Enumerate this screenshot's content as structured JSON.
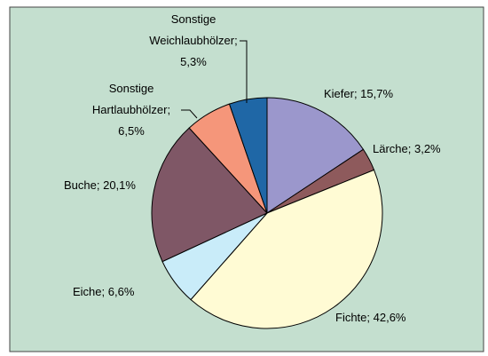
{
  "chart_data": {
    "type": "pie",
    "categories": [
      "Kiefer",
      "Lärche",
      "Fichte",
      "Eiche",
      "Buche",
      "Sonstige Hartlaubhölzer",
      "Sonstige Weichlaubhölzer"
    ],
    "values": [
      15.7,
      3.2,
      42.6,
      6.6,
      20.1,
      6.5,
      5.3
    ],
    "value_labels": [
      "Kiefer; 15,7%",
      "Lärche; 3,2%",
      "Fichte; 42,6%",
      "Eiche; 6,6%",
      "Buche; 20,1%",
      "Sonstige\nHartlaubhölzer;\n6,5%",
      "Sonstige\nWeichlaubhölzer;\n5,3%"
    ],
    "colors": [
      "#9b97cc",
      "#8e5a5c",
      "#fffbd4",
      "#c9ecf9",
      "#7f5766",
      "#f5967a",
      "#1f67a6"
    ]
  }
}
